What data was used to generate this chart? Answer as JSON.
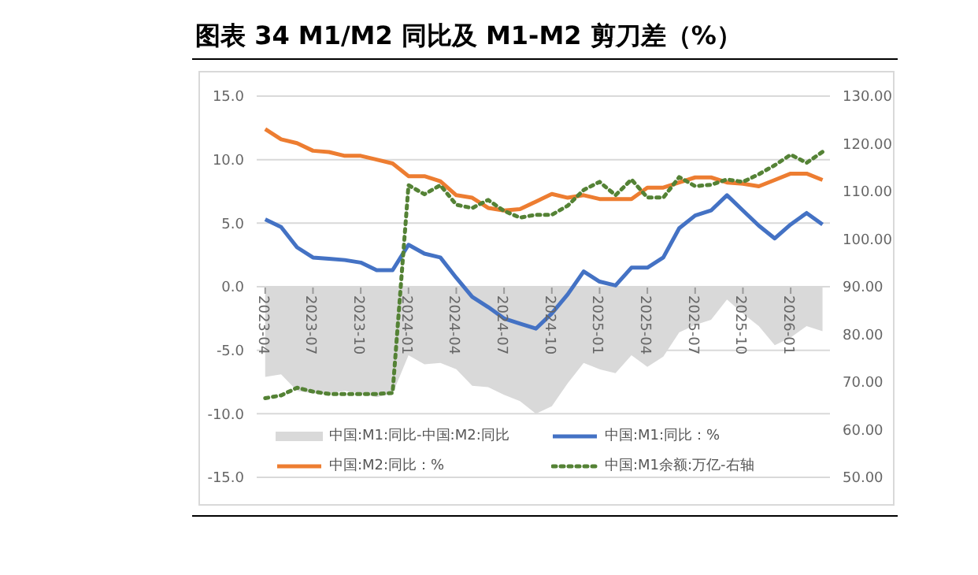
{
  "chart_data": {
    "type": "line",
    "title": "图表 34 M1/M2 同比及 M1-M2 剪刀差（%）",
    "x": [
      "2023-04",
      "2023-05",
      "2023-06",
      "2023-07",
      "2023-08",
      "2023-09",
      "2023-10",
      "2023-11",
      "2023-12",
      "2024-01",
      "2024-02",
      "2024-03",
      "2024-04",
      "2024-05",
      "2024-06",
      "2024-07",
      "2024-08",
      "2024-09",
      "2024-10",
      "2024-11",
      "2024-12",
      "2025-01",
      "2025-02",
      "2025-03",
      "2025-04",
      "2025-05",
      "2025-06",
      "2025-07",
      "2025-08",
      "2025-09",
      "2025-10",
      "2025-11",
      "2025-12",
      "2026-01",
      "2026-02",
      "2026-03"
    ],
    "xlim": [
      "2023-03-15",
      "2026-03-15"
    ],
    "xticks": [
      "2023-04",
      "2023-07",
      "2023-10",
      "2024-01",
      "2024-04",
      "2024-07",
      "2024-10",
      "2025-01",
      "2025-04",
      "2025-07",
      "2025-10",
      "2026-01"
    ],
    "series": [
      {
        "name": "中国:M1:同比-中国:M2:同比",
        "type": "area",
        "color": "#d9d9d9",
        "values": [
          -7.1,
          -6.9,
          -8.2,
          -8.4,
          -8.4,
          -8.2,
          -8.4,
          -8.7,
          -8.4,
          -5.4,
          -6.1,
          -6.0,
          -6.5,
          -7.8,
          -7.9,
          -8.5,
          -9.0,
          -10.0,
          -9.4,
          -7.6,
          -6.0,
          -6.5,
          -6.8,
          -5.4,
          -6.3,
          -5.5,
          -3.6,
          -3.0,
          -2.6,
          -1.0,
          -2.1,
          -3.1,
          -4.6,
          -4.0,
          -3.1,
          -3.5
        ]
      },
      {
        "name": "中国:M1:同比：%",
        "color": "#4472c4",
        "line_style": "solid",
        "values": [
          5.3,
          4.7,
          3.1,
          2.3,
          2.2,
          2.1,
          1.9,
          1.3,
          1.3,
          3.3,
          2.6,
          2.3,
          0.7,
          -0.8,
          -1.6,
          -2.5,
          -2.9,
          -3.3,
          -2.1,
          -0.6,
          1.2,
          0.4,
          0.1,
          1.5,
          1.5,
          2.3,
          4.6,
          5.6,
          6.0,
          7.2,
          6.0,
          4.8,
          3.8,
          4.9,
          5.8,
          4.9
        ]
      },
      {
        "name": "中国:M2:同比：%",
        "color": "#ed7d31",
        "line_style": "solid",
        "values": [
          12.4,
          11.6,
          11.3,
          10.7,
          10.6,
          10.3,
          10.3,
          10.0,
          9.7,
          8.7,
          8.7,
          8.3,
          7.2,
          7.0,
          6.2,
          6.0,
          6.1,
          6.7,
          7.3,
          7.0,
          7.2,
          6.9,
          6.9,
          6.9,
          7.8,
          7.8,
          8.2,
          8.6,
          8.6,
          8.2,
          8.1,
          7.9,
          8.4,
          8.9,
          8.9,
          8.4
        ]
      },
      {
        "name": "中国:M1余额:万亿-右轴",
        "color": "#548235",
        "line_style": "dotted",
        "axis": "y2",
        "values": [
          66.6,
          67.2,
          68.8,
          68.0,
          67.5,
          67.5,
          67.5,
          67.5,
          67.7,
          111.3,
          109.4,
          111.3,
          107.2,
          106.5,
          108.2,
          105.9,
          104.5,
          105.1,
          105.1,
          107.0,
          110.3,
          112.0,
          109.2,
          112.5,
          108.7,
          108.7,
          113.0,
          111.1,
          111.4,
          112.5,
          112.0,
          113.6,
          115.5,
          117.7,
          116.0,
          118.3
        ]
      }
    ],
    "ylim": [
      -15,
      15
    ],
    "yticks": [
      {
        "value": -15,
        "label": "-15.0"
      },
      {
        "value": -10,
        "label": "-10.0"
      },
      {
        "value": -5,
        "label": "-5.0"
      },
      {
        "value": 0,
        "label": "0.0"
      },
      {
        "value": 5,
        "label": "5.0"
      },
      {
        "value": 10,
        "label": "10.0"
      },
      {
        "value": 15,
        "label": "15.0"
      }
    ],
    "y2lim": [
      50,
      130
    ],
    "y2ticks": [
      {
        "value": 50,
        "label": "50.00"
      },
      {
        "value": 60,
        "label": "60.00"
      },
      {
        "value": 70,
        "label": "70.00"
      },
      {
        "value": 80,
        "label": "80.00"
      },
      {
        "value": 90,
        "label": "90.00"
      },
      {
        "value": 100,
        "label": "100.00"
      },
      {
        "value": 110,
        "label": "110.00"
      },
      {
        "value": 120,
        "label": "120.00"
      },
      {
        "value": 130,
        "label": "130.00"
      }
    ],
    "grid": "y",
    "legend": "bottom",
    "marker": "none"
  }
}
